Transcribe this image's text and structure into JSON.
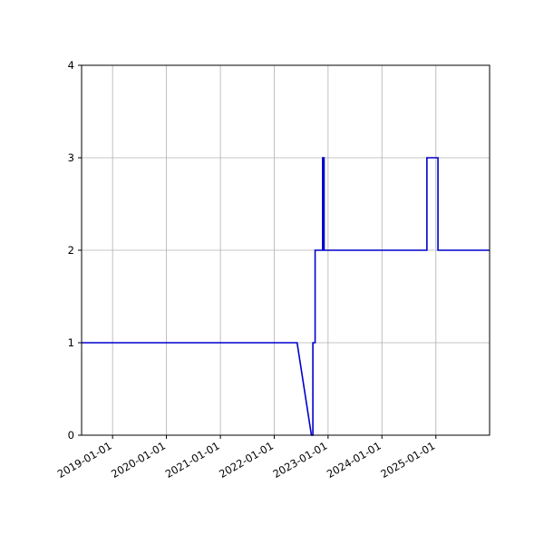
{
  "chart_data": {
    "type": "line",
    "title": "",
    "xlabel": "",
    "ylabel": "",
    "x_axis_type": "date",
    "xlim": [
      "2018-06-05",
      "2025-12-31"
    ],
    "ylim": [
      0,
      4
    ],
    "grid": true,
    "x_ticks": [
      "2019-01-01",
      "2020-01-01",
      "2021-01-01",
      "2022-01-01",
      "2023-01-01",
      "2024-01-01",
      "2025-01-01"
    ],
    "y_ticks": [
      0,
      1,
      2,
      3,
      4
    ],
    "series": [
      {
        "color": "#0000cc",
        "step": "post",
        "x": [
          "2018-06-05",
          "2022-06-05",
          "2022-09-10",
          "2022-09-20",
          "2022-10-05",
          "2022-11-25",
          "2022-12-05",
          "2024-11-01",
          "2025-01-15",
          "2025-12-31"
        ],
        "y": [
          1,
          1,
          0,
          1,
          2,
          3,
          2,
          3,
          2,
          2
        ]
      }
    ]
  }
}
